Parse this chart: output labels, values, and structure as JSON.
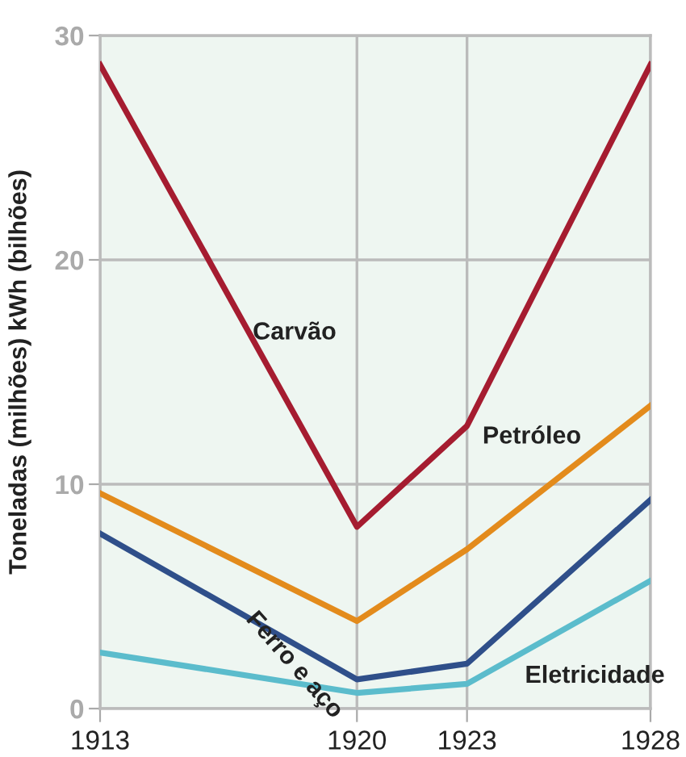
{
  "chart_data": {
    "type": "line",
    "ylabel": "Toneladas (milhões) kWh (bilhões)",
    "x": [
      1913,
      1920,
      1923,
      1928
    ],
    "xlim": [
      1913,
      1928
    ],
    "xticks": [
      1913,
      1920,
      1923,
      1928
    ],
    "ylim": [
      0,
      30
    ],
    "yticks": [
      0,
      10,
      20,
      30
    ],
    "grid": true,
    "legend": false,
    "marker": "none",
    "line_style": "solid",
    "series": [
      {
        "name": "Carvão",
        "color": "#a51c30",
        "values": [
          28.7,
          8.1,
          12.6,
          28.7
        ]
      },
      {
        "name": "Petróleo",
        "color": "#e38b1c",
        "values": [
          9.6,
          3.9,
          7.1,
          13.5
        ]
      },
      {
        "name": "Ferro e aço",
        "color": "#2f4f8a",
        "values": [
          7.8,
          1.3,
          2.0,
          9.3
        ]
      },
      {
        "name": "Eletricidade",
        "color": "#5bbccc",
        "values": [
          2.5,
          0.7,
          1.1,
          5.7
        ]
      }
    ]
  }
}
